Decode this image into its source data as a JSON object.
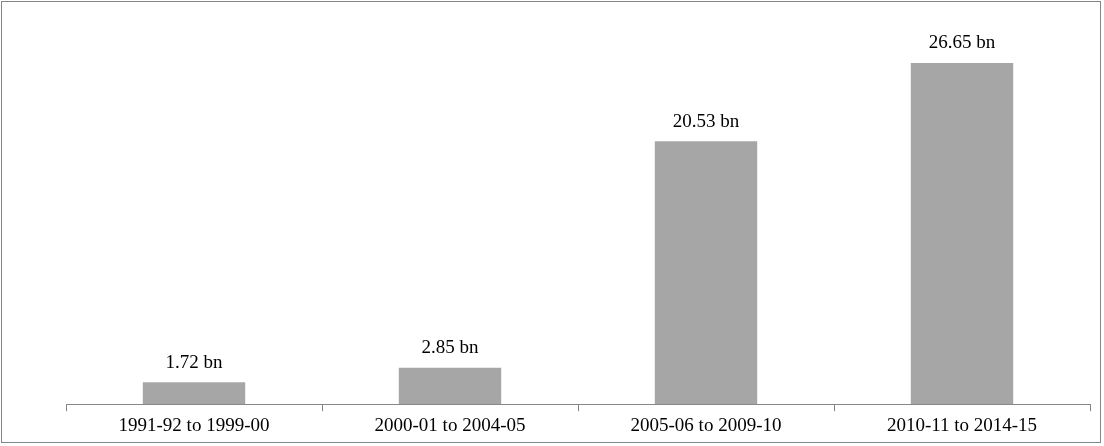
{
  "chart_data": {
    "type": "bar",
    "categories": [
      "1991-92 to 1999-00",
      "2000-01 to 2004-05",
      "2005-06 to 2009-10",
      "2010-11 to 2014-15"
    ],
    "values": [
      1.72,
      2.85,
      20.53,
      26.65
    ],
    "value_labels": [
      "1.72 bn",
      "2.85 bn",
      "20.53 bn",
      "26.65 bn"
    ],
    "color": "#a6a6a6",
    "tick_labels": "x",
    "grid": false,
    "legend": false
  }
}
